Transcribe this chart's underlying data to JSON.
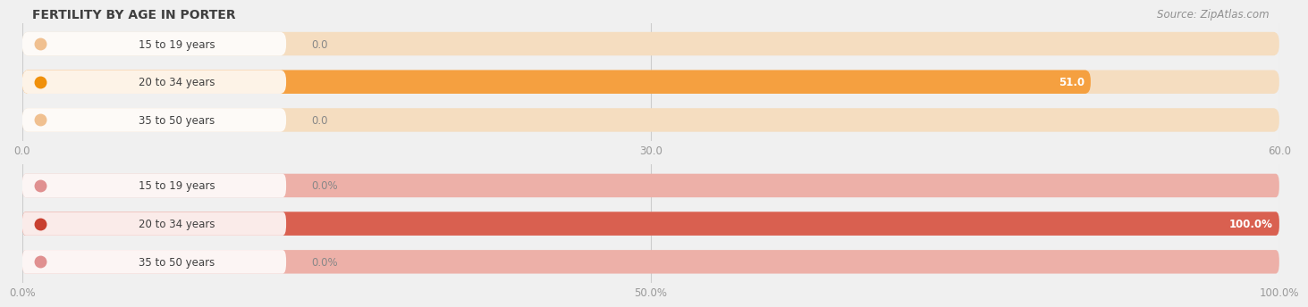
{
  "title": "FERTILITY BY AGE IN PORTER",
  "source": "Source: ZipAtlas.com",
  "chart1": {
    "categories": [
      "15 to 19 years",
      "20 to 34 years",
      "35 to 50 years"
    ],
    "values": [
      0.0,
      51.0,
      0.0
    ],
    "max_value": 60.0,
    "x_ticks": [
      0.0,
      30.0,
      60.0
    ],
    "x_tick_labels": [
      "0.0",
      "30.0",
      "60.0"
    ],
    "bar_color": "#F5A040",
    "bar_bg_color": "#F5DDC0",
    "dot_colors": [
      "#F0C090",
      "#F0900A",
      "#F0C090"
    ],
    "value_label_color": "#FFFFFF",
    "value_label_color_zero": "#888888"
  },
  "chart2": {
    "categories": [
      "15 to 19 years",
      "20 to 34 years",
      "35 to 50 years"
    ],
    "values": [
      0.0,
      100.0,
      0.0
    ],
    "max_value": 100.0,
    "x_ticks": [
      0.0,
      50.0,
      100.0
    ],
    "x_tick_labels": [
      "0.0%",
      "50.0%",
      "100.0%"
    ],
    "bar_color": "#D96050",
    "bar_bg_color": "#EDB0A8",
    "dot_colors": [
      "#E09090",
      "#C84030",
      "#E09090"
    ],
    "value_label_color": "#FFFFFF",
    "value_label_color_zero": "#888888"
  },
  "bg_color": "#F0F0F0",
  "title_color": "#404040",
  "source_color": "#909090",
  "tick_color": "#999999",
  "grid_color": "#CCCCCC",
  "bar_height": 0.62,
  "label_fontsize": 8.5,
  "title_fontsize": 10,
  "source_fontsize": 8.5
}
